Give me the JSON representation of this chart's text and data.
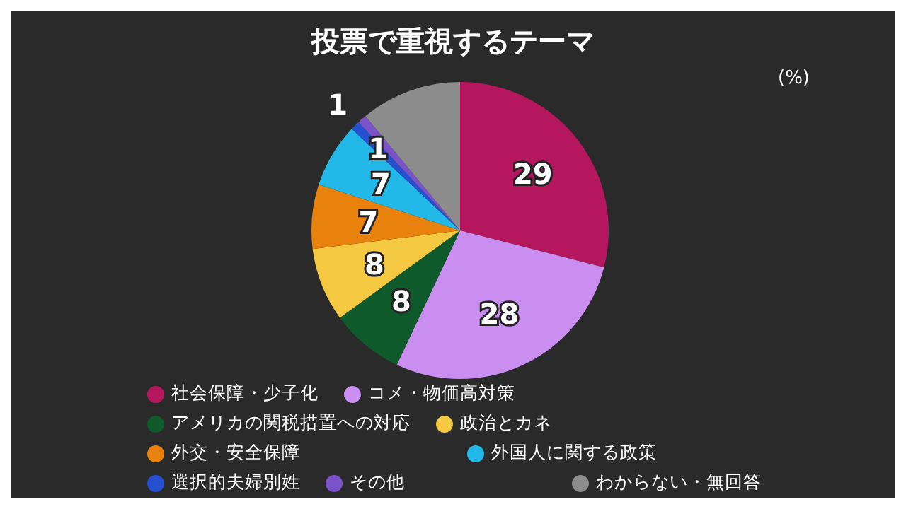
{
  "chart_data": {
    "type": "pie",
    "title": "投票で重視するテーマ",
    "annotations": [
      "(%)"
    ],
    "categories": [
      "社会保障・少子化",
      "コメ・物価高対策",
      "アメリカの関税措置への対応",
      "政治とカネ",
      "外交・安全保障",
      "外国人に関する政策",
      "選択的夫婦別姓",
      "その他",
      "わからない・無回答"
    ],
    "values": [
      29,
      28,
      8,
      8,
      7,
      7,
      1,
      1,
      11
    ],
    "value_labels": [
      "29",
      "28",
      "8",
      "8",
      "7",
      "7",
      "1",
      "1",
      null
    ],
    "colors": [
      "#b5175e",
      "#c98ef0",
      "#0f5a2a",
      "#f5c842",
      "#e8820c",
      "#22b8e8",
      "#2550d0",
      "#7c52c8",
      "#8c8c8c"
    ],
    "legend": "bottom"
  }
}
